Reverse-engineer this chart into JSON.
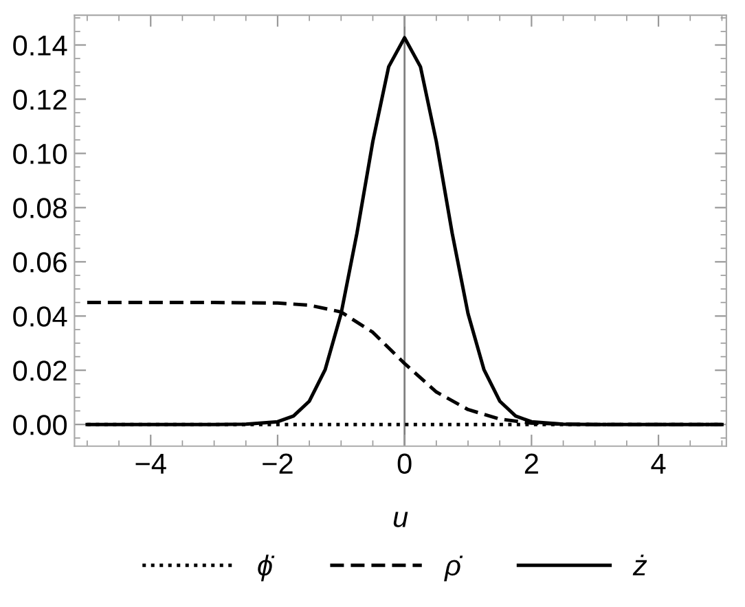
{
  "chart_data": {
    "type": "line",
    "xlabel": "u",
    "xlim": [
      -5.2,
      5.07
    ],
    "xticks": [
      -4,
      -2,
      0,
      2,
      4
    ],
    "ylim": [
      -0.008,
      0.151
    ],
    "yticks": [
      {
        "value": 0,
        "label": "0.00"
      },
      {
        "value": 0.02,
        "label": "0.02"
      },
      {
        "value": 0.04,
        "label": "0.04"
      },
      {
        "value": 0.06,
        "label": "0.06"
      },
      {
        "value": 0.08,
        "label": "0.08"
      },
      {
        "value": 0.1,
        "label": "0.10"
      },
      {
        "value": 0.12,
        "label": "0.12"
      },
      {
        "value": 0.14,
        "label": "0.14"
      }
    ],
    "grid": false,
    "legend": "bottom",
    "marker": "none",
    "ref_lines": [
      {
        "axis": "x",
        "value": 0,
        "color": "#808080"
      }
    ],
    "series": [
      {
        "name": "ϕ̇",
        "color": "#000000",
        "line_style": "dotted",
        "x": [
          -5,
          5
        ],
        "values": [
          0,
          0
        ]
      },
      {
        "name": "ρ̇",
        "color": "#000000",
        "line_style": "dashed",
        "x": [
          -5,
          -3,
          -2,
          -1.5,
          -1,
          -0.5,
          0,
          0.5,
          1,
          1.5,
          2,
          2.5,
          3,
          5
        ],
        "values": [
          0.045,
          0.045,
          0.0448,
          0.044,
          0.0415,
          0.034,
          0.0225,
          0.012,
          0.0055,
          0.002,
          0.0005,
          0.0001,
          0,
          0
        ]
      },
      {
        "name": "ż",
        "color": "#000000",
        "line_style": "solid",
        "x": [
          -5,
          -3,
          -2.5,
          -2,
          -1.75,
          -1.5,
          -1.25,
          -1,
          -0.75,
          -0.5,
          -0.25,
          0,
          0.25,
          0.5,
          0.75,
          1,
          1.25,
          1.5,
          1.75,
          2,
          2.5,
          3,
          5
        ],
        "values": [
          0,
          0,
          0.0001,
          0.001,
          0.0031,
          0.0086,
          0.0203,
          0.0409,
          0.0706,
          0.1044,
          0.132,
          0.1427,
          0.132,
          0.1044,
          0.0706,
          0.0409,
          0.0203,
          0.0086,
          0.0031,
          0.001,
          0.0001,
          0,
          0
        ]
      }
    ]
  }
}
